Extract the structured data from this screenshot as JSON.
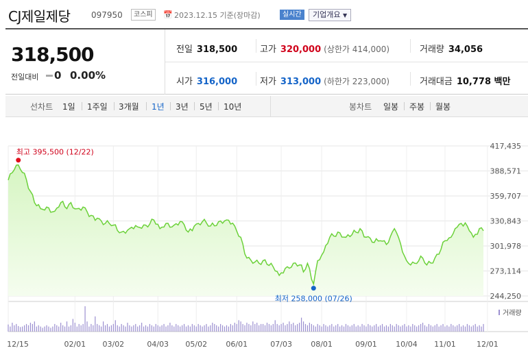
{
  "header": {
    "company_name": "CJ제일제당",
    "code": "097950",
    "market": "코스피",
    "calendar_icon": "calendar-icon",
    "base_date": "2023.12.15 기준(장마감)",
    "realtime_label": "실시간",
    "company_overview_label": "기업개요",
    "overview_chevron_icon": "chevron-down-icon"
  },
  "summary": {
    "current_price": "318,500",
    "change_label": "전일대비",
    "change_value": "0",
    "change_pct": "0.00%",
    "prev_close_label": "전일",
    "prev_close": "318,500",
    "high_label": "고가",
    "high": "320,000",
    "upper_limit": "(상한가 414,000)",
    "volume_label": "거래량",
    "volume": "34,056",
    "open_label": "시가",
    "open": "316,000",
    "low_label": "저가",
    "low": "313,000",
    "lower_limit": "(하한가 223,000)",
    "trade_value_label": "거래대금",
    "trade_value": "10,778 백만",
    "colors": {
      "up": "#d0021b",
      "down": "#1464c8"
    }
  },
  "tabs": {
    "line_chart_label": "선차트",
    "periods": [
      "1일",
      "1주일",
      "3개월",
      "1년",
      "3년",
      "5년",
      "10년"
    ],
    "selected_period": "1년",
    "candle_label": "봉차트",
    "candles": [
      "일봉",
      "주봉",
      "월봉"
    ]
  },
  "chart_data": {
    "type": "area",
    "y_ticks": [
      "417,435",
      "388,571",
      "359,707",
      "330,843",
      "301,978",
      "273,114",
      "244,250"
    ],
    "ylim": [
      244250,
      417435
    ],
    "x_ticks": [
      "12/15",
      "02/01",
      "03/02",
      "04/03",
      "05/02",
      "06/01",
      "07/03",
      "08/01",
      "09/01",
      "10/04",
      "11/01",
      "12/01"
    ],
    "x_tick_index": [
      0,
      33,
      52,
      74,
      93,
      113,
      135,
      155,
      177,
      197,
      216,
      237
    ],
    "max_label": "최고 395,500 (12/22)",
    "max_index": 5,
    "max_value": 395500,
    "min_label": "최저 258,000 (07/26)",
    "min_index": 151,
    "min_value": 258000,
    "volume_legend": "거래량",
    "grid": true,
    "line_color": "#6cd13a",
    "fill_color": "#d6f5c2",
    "price_anchors": [
      [
        0,
        378000
      ],
      [
        3,
        390000
      ],
      [
        5,
        395500
      ],
      [
        8,
        386000
      ],
      [
        11,
        365000
      ],
      [
        13,
        352000
      ],
      [
        16,
        345000
      ],
      [
        20,
        346000
      ],
      [
        23,
        342000
      ],
      [
        26,
        352000
      ],
      [
        29,
        345000
      ],
      [
        31,
        352000
      ],
      [
        34,
        345000
      ],
      [
        38,
        346000
      ],
      [
        40,
        336000
      ],
      [
        44,
        334000
      ],
      [
        48,
        328000
      ],
      [
        52,
        326000
      ],
      [
        56,
        318000
      ],
      [
        60,
        322000
      ],
      [
        64,
        324000
      ],
      [
        68,
        326000
      ],
      [
        72,
        332000
      ],
      [
        75,
        322000
      ],
      [
        78,
        328000
      ],
      [
        82,
        326000
      ],
      [
        86,
        330000
      ],
      [
        89,
        318000
      ],
      [
        92,
        325000
      ],
      [
        96,
        330000
      ],
      [
        100,
        325000
      ],
      [
        104,
        330000
      ],
      [
        108,
        332000
      ],
      [
        112,
        325000
      ],
      [
        115,
        312000
      ],
      [
        118,
        288000
      ],
      [
        121,
        282000
      ],
      [
        124,
        282000
      ],
      [
        127,
        286000
      ],
      [
        131,
        278000
      ],
      [
        134,
        268000
      ],
      [
        138,
        278000
      ],
      [
        141,
        282000
      ],
      [
        144,
        280000
      ],
      [
        146,
        272000
      ],
      [
        148,
        282000
      ],
      [
        151,
        258000
      ],
      [
        153,
        285000
      ],
      [
        156,
        295000
      ],
      [
        159,
        312000
      ],
      [
        163,
        318000
      ],
      [
        167,
        312000
      ],
      [
        170,
        315000
      ],
      [
        174,
        322000
      ],
      [
        177,
        312000
      ],
      [
        181,
        306000
      ],
      [
        184,
        308000
      ],
      [
        188,
        306000
      ],
      [
        191,
        322000
      ],
      [
        193,
        312000
      ],
      [
        195,
        295000
      ],
      [
        197,
        285000
      ],
      [
        201,
        282000
      ],
      [
        205,
        288000
      ],
      [
        207,
        280000
      ],
      [
        211,
        288000
      ],
      [
        214,
        298000
      ],
      [
        216,
        308000
      ],
      [
        219,
        312000
      ],
      [
        221,
        322000
      ],
      [
        224,
        328000
      ],
      [
        227,
        325000
      ],
      [
        230,
        312000
      ],
      [
        233,
        322000
      ],
      [
        236,
        322000
      ],
      [
        240,
        318000
      ]
    ],
    "volume_rel": [
      0.28,
      0.2,
      0.35,
      0.25,
      0.3,
      0.22,
      0.18,
      0.2,
      0.25,
      0.3,
      0.25,
      0.35,
      0.3,
      0.4,
      0.2,
      0.25,
      0.2,
      0.15,
      0.2,
      0.25,
      0.2,
      0.15,
      0.2,
      0.3,
      0.25,
      0.2,
      0.35,
      0.25,
      0.2,
      0.4,
      0.2,
      0.25,
      0.5,
      0.35,
      0.2,
      0.3,
      0.25,
      0.3,
      1.0,
      0.4,
      0.2,
      0.3,
      0.25,
      0.6,
      0.3,
      0.25,
      0.2,
      0.4,
      0.25,
      0.3,
      0.2,
      0.25,
      0.3,
      0.45,
      0.25,
      0.2,
      0.3,
      0.25,
      0.2,
      0.35,
      0.25,
      0.2,
      0.25,
      0.3,
      0.2,
      0.25,
      0.35,
      0.2,
      0.25,
      0.2,
      0.3,
      0.25,
      0.2,
      0.3,
      0.25,
      0.2,
      0.25,
      0.3,
      0.2,
      0.25,
      0.35,
      0.25,
      0.2,
      0.3,
      0.25,
      0.2,
      0.25,
      0.3,
      0.2,
      0.25,
      0.2,
      0.3,
      0.25,
      0.2,
      0.3,
      0.25,
      0.2,
      0.25,
      0.3,
      0.2,
      0.25,
      0.35,
      0.3,
      0.25,
      0.2,
      0.3,
      0.25,
      0.2,
      0.25,
      0.2,
      0.3,
      0.25,
      0.35,
      0.3,
      0.45,
      0.4,
      0.3,
      0.25,
      0.35,
      0.3,
      0.25,
      0.4,
      0.3,
      0.35,
      0.25,
      0.3,
      0.3,
      0.25,
      0.35,
      0.3,
      0.25,
      0.3,
      0.45,
      0.3,
      0.25,
      0.3,
      0.35,
      0.25,
      0.3,
      0.4,
      0.3,
      0.35,
      0.25,
      0.3,
      0.35,
      0.55,
      0.4,
      0.3,
      0.25,
      0.35,
      0.3,
      0.25,
      0.2,
      0.3,
      0.25,
      0.2,
      0.3,
      0.25,
      0.2,
      0.25,
      0.3,
      0.2,
      0.25,
      0.3,
      0.2,
      0.25,
      0.2,
      0.3,
      0.25,
      0.2,
      0.25,
      0.3,
      0.2,
      0.25,
      0.2,
      0.3,
      0.25,
      0.2,
      0.3,
      0.25,
      0.2,
      0.25,
      0.3,
      0.2,
      0.25,
      0.3,
      0.2,
      0.25,
      0.2,
      0.3,
      0.25,
      0.2,
      0.3,
      0.25,
      0.2,
      0.25,
      0.3,
      0.2,
      0.25,
      0.2,
      0.3,
      0.25,
      0.2,
      0.25,
      0.3,
      0.35,
      0.25,
      0.2,
      0.3,
      0.25,
      0.2,
      0.25,
      0.3,
      0.2,
      0.25,
      0.3,
      0.2,
      0.25,
      0.2,
      0.3,
      0.25,
      0.2,
      0.25,
      0.3,
      0.2,
      0.25,
      0.2,
      0.3,
      0.25,
      0.2,
      0.25,
      0.3,
      0.2,
      0.25,
      0.2,
      0.3
    ]
  }
}
